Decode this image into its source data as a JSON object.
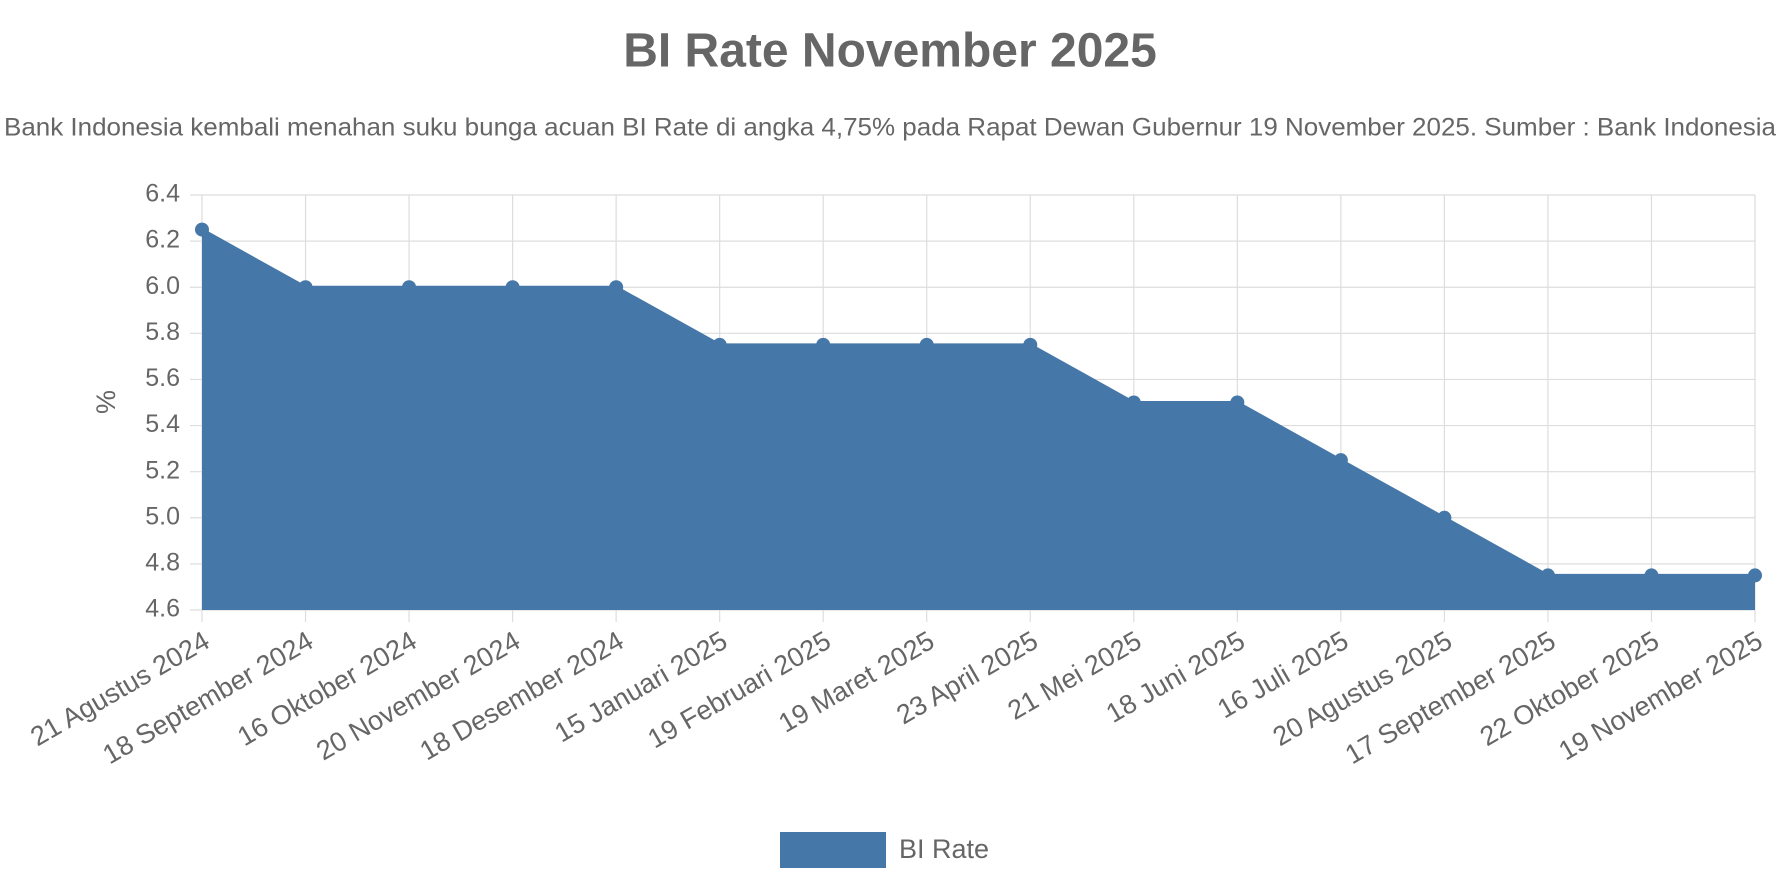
{
  "chart_data": {
    "type": "area",
    "title": "BI Rate November 2025",
    "subtitle": "Bank Indonesia kembali menahan suku bunga acuan BI Rate di angka 4,75% pada Rapat Dewan Gubernur 19 November 2025. Sumber : Bank Indonesia",
    "y_label": "%",
    "categories": [
      "21 Agustus 2024",
      "18 September 2024",
      "16 Oktober 2024",
      "20 November 2024",
      "18 Desember 2024",
      "15 Januari 2025",
      "19 Februari 2025",
      "19 Maret 2025",
      "23 April 2025",
      "21 Mei 2025",
      "18 Juni 2025",
      "16 Juli 2025",
      "20 Agustus 2025",
      "17 September 2025",
      "22 Oktober 2025",
      "19 November 2025"
    ],
    "series": [
      {
        "name": "BI Rate",
        "color": "#4577a8",
        "values": [
          6.25,
          6.0,
          6.0,
          6.0,
          6.0,
          5.75,
          5.75,
          5.75,
          5.75,
          5.5,
          5.5,
          5.25,
          5.0,
          4.75,
          4.75,
          4.75
        ]
      }
    ],
    "ylim": [
      4.6,
      6.4
    ],
    "yticks": [
      4.6,
      4.8,
      {
        "value": 5,
        "label": "5.0"
      },
      5.2,
      5.4,
      5.6,
      5.8,
      {
        "value": 6,
        "label": "6.0"
      },
      6.2,
      6.4
    ],
    "grid": true,
    "legend": "bottom"
  }
}
